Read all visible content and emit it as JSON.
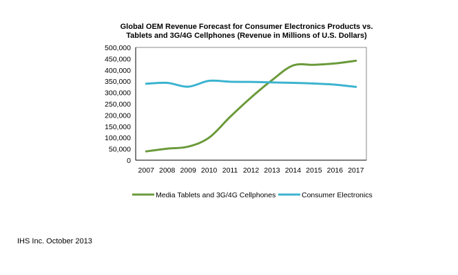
{
  "chart_data": {
    "type": "line",
    "title": [
      "Global OEM Revenue Forecast for Consumer Electronics Products vs.",
      "Tablets and 3G/4G Cellphones (Revenue in Millions of U.S. Dollars)"
    ],
    "xlabel": "",
    "ylabel": "",
    "categories": [
      "2007",
      "2008",
      "2009",
      "2010",
      "2011",
      "2012",
      "2013",
      "2014",
      "2015",
      "2016",
      "2017"
    ],
    "ylim": [
      0,
      500000
    ],
    "yticks": [
      0,
      50000,
      100000,
      150000,
      200000,
      250000,
      300000,
      350000,
      400000,
      450000,
      500000
    ],
    "ytick_labels": [
      "0",
      "50,000",
      "100,000",
      "150,000",
      "200,000",
      "250,000",
      "300,000",
      "350,000",
      "400,000",
      "450,000",
      "500,000"
    ],
    "grid": false,
    "legend_position": "bottom",
    "series": [
      {
        "name": "Media Tablets and 3G/4G Cellphones",
        "color": "#6A9A3A",
        "values": [
          39000,
          51000,
          60000,
          100000,
          192000,
          278000,
          355000,
          420000,
          423000,
          429000,
          441000
        ]
      },
      {
        "name": "Consumer Electronics",
        "color": "#3BB3CF",
        "values": [
          339000,
          343000,
          326000,
          352000,
          348000,
          347000,
          345000,
          343000,
          340000,
          335000,
          325000
        ]
      }
    ]
  },
  "footer": "IHS Inc. October 2013"
}
